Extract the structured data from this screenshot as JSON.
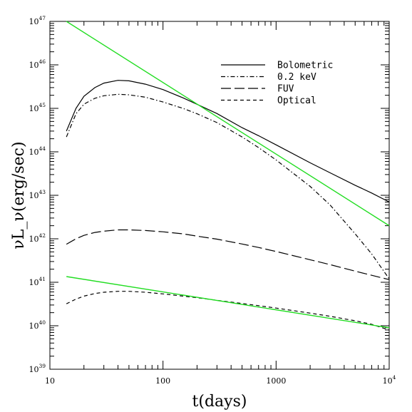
{
  "chart_data": {
    "type": "line",
    "x_scale": "log",
    "y_scale": "log",
    "xlim": [
      10,
      10000
    ],
    "ylim": [
      1e+39,
      1e+47
    ],
    "xlabel": "t(days)",
    "ylabel": "νL_ν(erg/sec)",
    "x_ticks": [
      {
        "value": 10,
        "label": "10"
      },
      {
        "value": 100,
        "label": "100"
      },
      {
        "value": 1000,
        "label": "1000"
      },
      {
        "value": 10000,
        "label": "10",
        "exp": "4"
      }
    ],
    "y_ticks": [
      {
        "value": 1e+39,
        "label": "10",
        "exp": "39"
      },
      {
        "value": 1e+40,
        "label": "10",
        "exp": "40"
      },
      {
        "value": 1e+41,
        "label": "10",
        "exp": "41"
      },
      {
        "value": 1e+42,
        "label": "10",
        "exp": "42"
      },
      {
        "value": 1e+43,
        "label": "10",
        "exp": "43"
      },
      {
        "value": 1e+44,
        "label": "10",
        "exp": "44"
      },
      {
        "value": 1e+45,
        "label": "10",
        "exp": "45"
      },
      {
        "value": 1e+46,
        "label": "10",
        "exp": "46"
      },
      {
        "value": 1e+47,
        "label": "10",
        "exp": "47"
      }
    ],
    "legend_position": "top-right",
    "series": [
      {
        "name": "Bolometric",
        "style": "solid",
        "color": "#000000",
        "in_legend": true,
        "x": [
          14,
          17,
          20,
          25,
          30,
          40,
          50,
          70,
          100,
          150,
          200,
          300,
          500,
          700,
          1000,
          2000,
          3000,
          5000,
          7000,
          10000
        ],
        "y": [
          3e+44,
          1e+45,
          1.9e+45,
          3e+45,
          3.8e+45,
          4.4e+45,
          4.3e+45,
          3.6e+45,
          2.7e+45,
          1.75e+45,
          1.24e+45,
          7.6e+44,
          3.6e+44,
          2.35e+44,
          1.45e+44,
          5.6e+43,
          3.3e+43,
          1.7e+43,
          1.13e+43,
          7e+42
        ]
      },
      {
        "name": "0.2 keV",
        "style": "dashdot",
        "color": "#000000",
        "in_legend": true,
        "x": [
          14,
          17,
          20,
          25,
          30,
          40,
          50,
          70,
          100,
          150,
          200,
          300,
          500,
          700,
          1000,
          2000,
          3000,
          5000,
          7000,
          10000
        ],
        "y": [
          2.2e+44,
          7.5e+44,
          1.25e+45,
          1.7e+45,
          1.95e+45,
          2.1e+45,
          2.05e+45,
          1.8e+45,
          1.4e+45,
          1e+45,
          7.5e+44,
          4.7e+44,
          2.2e+44,
          1.25e+44,
          6.5e+43,
          1.6e+43,
          6e+42,
          1.3e+42,
          4.5e+41,
          1.2e+41
        ]
      },
      {
        "name": "FUV",
        "style": "longdash",
        "color": "#000000",
        "in_legend": true,
        "x": [
          14,
          17,
          20,
          25,
          30,
          40,
          50,
          70,
          100,
          150,
          200,
          300,
          500,
          700,
          1000,
          2000,
          3000,
          5000,
          7000,
          10000
        ],
        "y": [
          7.5e+41,
          1e+42,
          1.2e+42,
          1.4e+42,
          1.5e+42,
          1.6e+42,
          1.6e+42,
          1.55e+42,
          1.45e+42,
          1.3e+42,
          1.15e+42,
          9.8e+41,
          7.6e+41,
          6.3e+41,
          5.1e+41,
          3.3e+41,
          2.55e+41,
          1.8e+41,
          1.45e+41,
          1.15e+41
        ]
      },
      {
        "name": "Optical",
        "style": "shortdash",
        "color": "#000000",
        "in_legend": true,
        "x": [
          14,
          17,
          20,
          25,
          30,
          40,
          50,
          70,
          100,
          150,
          200,
          300,
          500,
          700,
          1000,
          2000,
          3000,
          5000,
          7000,
          10000
        ],
        "y": [
          3.2e+40,
          4.1e+40,
          4.8e+40,
          5.5e+40,
          5.9e+40,
          6.2e+40,
          6.2e+40,
          5.9e+40,
          5.4e+40,
          4.8e+40,
          4.4e+40,
          3.85e+40,
          3.25e+40,
          2.9e+40,
          2.55e+40,
          1.95e+40,
          1.65e+40,
          1.3e+40,
          1.08e+40,
          8e+39
        ]
      },
      {
        "name": "",
        "style": "solid",
        "color": "#22dd22",
        "in_legend": false,
        "x": [
          14,
          10000
        ],
        "y": [
          1e+47,
          2e+42
        ]
      },
      {
        "name": "",
        "style": "solid",
        "color": "#22dd22",
        "in_legend": false,
        "x": [
          14,
          10000
        ],
        "y": [
          1.35e+41,
          9e+39
        ]
      }
    ]
  }
}
